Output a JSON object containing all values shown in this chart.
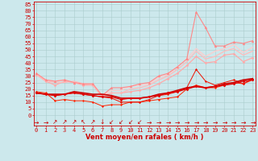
{
  "xlabel": "Vent moyen/en rafales ( km/h )",
  "bg_color": "#cce8ec",
  "grid_color": "#aacccc",
  "x_ticks": [
    0,
    1,
    2,
    3,
    4,
    5,
    6,
    7,
    8,
    9,
    10,
    11,
    12,
    13,
    14,
    15,
    16,
    17,
    18,
    19,
    20,
    21,
    22,
    23
  ],
  "y_ticks": [
    0,
    5,
    10,
    15,
    20,
    25,
    30,
    35,
    40,
    45,
    50,
    55,
    60,
    65,
    70,
    75,
    80,
    85
  ],
  "ylim": [
    -8,
    87
  ],
  "xlim": [
    -0.3,
    23.3
  ],
  "lines": [
    {
      "x": [
        0,
        1,
        2,
        3,
        4,
        5,
        6,
        7,
        8,
        9,
        10,
        11,
        12,
        13,
        14,
        15,
        16,
        17,
        18,
        19,
        20,
        21,
        22,
        23
      ],
      "y": [
        17,
        16,
        15,
        16,
        17,
        16,
        15,
        14,
        14,
        12,
        13,
        13,
        14,
        15,
        17,
        18,
        20,
        22,
        21,
        22,
        23,
        24,
        26,
        27
      ],
      "color": "#dd0000",
      "lw": 0.9,
      "marker": "D",
      "ms": 1.5,
      "zorder": 5
    },
    {
      "x": [
        0,
        1,
        2,
        3,
        4,
        5,
        6,
        7,
        8,
        9,
        10,
        11,
        12,
        13,
        14,
        15,
        16,
        17,
        18,
        19,
        20,
        21,
        22,
        23
      ],
      "y": [
        17,
        16,
        16,
        16,
        18,
        17,
        16,
        16,
        15,
        13,
        13,
        13,
        14,
        16,
        17,
        19,
        21,
        22,
        21,
        22,
        24,
        25,
        27,
        28
      ],
      "color": "#cc0000",
      "lw": 1.2,
      "marker": null,
      "ms": 0,
      "zorder": 4
    },
    {
      "x": [
        0,
        1,
        2,
        3,
        4,
        5,
        6,
        7,
        8,
        9,
        10,
        11,
        12,
        13,
        14,
        15,
        16,
        17,
        18,
        19,
        20,
        21,
        22,
        23
      ],
      "y": [
        18,
        17,
        11,
        12,
        11,
        11,
        10,
        7,
        8,
        8,
        10,
        10,
        11,
        12,
        13,
        14,
        20,
        23,
        21,
        21,
        23,
        25,
        24,
        27
      ],
      "color": "#ff2200",
      "lw": 0.7,
      "marker": "D",
      "ms": 1.2,
      "zorder": 3
    },
    {
      "x": [
        0,
        1,
        2,
        3,
        4,
        5,
        6,
        7,
        8,
        9,
        10,
        11,
        12,
        13,
        14,
        15,
        16,
        17,
        18,
        19,
        20,
        21,
        22,
        23
      ],
      "y": [
        17,
        16,
        15,
        16,
        17,
        16,
        15,
        14,
        13,
        10,
        10,
        10,
        12,
        15,
        16,
        18,
        21,
        35,
        26,
        23,
        25,
        27,
        24,
        28
      ],
      "color": "#ee1100",
      "lw": 0.7,
      "marker": "D",
      "ms": 1.2,
      "zorder": 3
    },
    {
      "x": [
        0,
        1,
        2,
        3,
        4,
        5,
        6,
        7,
        8,
        9,
        10,
        11,
        12,
        13,
        14,
        15,
        16,
        17,
        18,
        19,
        20,
        21,
        22,
        23
      ],
      "y": [
        31,
        26,
        23,
        26,
        25,
        23,
        23,
        14,
        17,
        17,
        18,
        19,
        21,
        24,
        28,
        32,
        38,
        45,
        40,
        41,
        46,
        47,
        41,
        44
      ],
      "color": "#ffaaaa",
      "lw": 0.9,
      "marker": "D",
      "ms": 1.5,
      "zorder": 2
    },
    {
      "x": [
        0,
        1,
        2,
        3,
        4,
        5,
        6,
        7,
        8,
        9,
        10,
        11,
        12,
        13,
        14,
        15,
        16,
        17,
        18,
        19,
        20,
        21,
        22,
        23
      ],
      "y": [
        31,
        26,
        25,
        25,
        26,
        24,
        23,
        15,
        17,
        17,
        20,
        21,
        23,
        27,
        30,
        35,
        41,
        49,
        43,
        45,
        49,
        51,
        46,
        49
      ],
      "color": "#ffbbbb",
      "lw": 0.9,
      "marker": null,
      "ms": 0,
      "zorder": 2
    },
    {
      "x": [
        0,
        1,
        2,
        3,
        4,
        5,
        6,
        7,
        8,
        9,
        10,
        11,
        12,
        13,
        14,
        15,
        16,
        17,
        18,
        19,
        20,
        21,
        22,
        23
      ],
      "y": [
        32,
        27,
        26,
        27,
        25,
        24,
        24,
        15,
        19,
        19,
        22,
        23,
        24,
        29,
        31,
        37,
        43,
        51,
        45,
        49,
        51,
        54,
        48,
        52
      ],
      "color": "#ffcccc",
      "lw": 0.9,
      "marker": null,
      "ms": 0,
      "zorder": 2
    },
    {
      "x": [
        0,
        1,
        2,
        3,
        4,
        5,
        6,
        7,
        8,
        9,
        10,
        11,
        12,
        13,
        14,
        15,
        16,
        17,
        18,
        19,
        20,
        21,
        22,
        23
      ],
      "y": [
        32,
        27,
        26,
        27,
        25,
        24,
        24,
        15,
        21,
        21,
        22,
        24,
        25,
        30,
        32,
        37,
        43,
        79,
        67,
        53,
        53,
        56,
        55,
        57
      ],
      "color": "#ff8888",
      "lw": 0.8,
      "marker": "^",
      "ms": 2.0,
      "zorder": 2
    }
  ],
  "arrows": [
    "→",
    "→",
    "↗",
    "↗",
    "↗",
    "↖",
    "↗",
    "↓",
    "↙",
    "↙",
    "↙",
    "↙",
    "→",
    "→",
    "→",
    "→",
    "→",
    "→",
    "→",
    "→",
    "→",
    "→",
    "→",
    "→"
  ],
  "tick_fontsize": 5.0,
  "label_fontsize": 6.0,
  "arrow_fontsize": 5.5
}
